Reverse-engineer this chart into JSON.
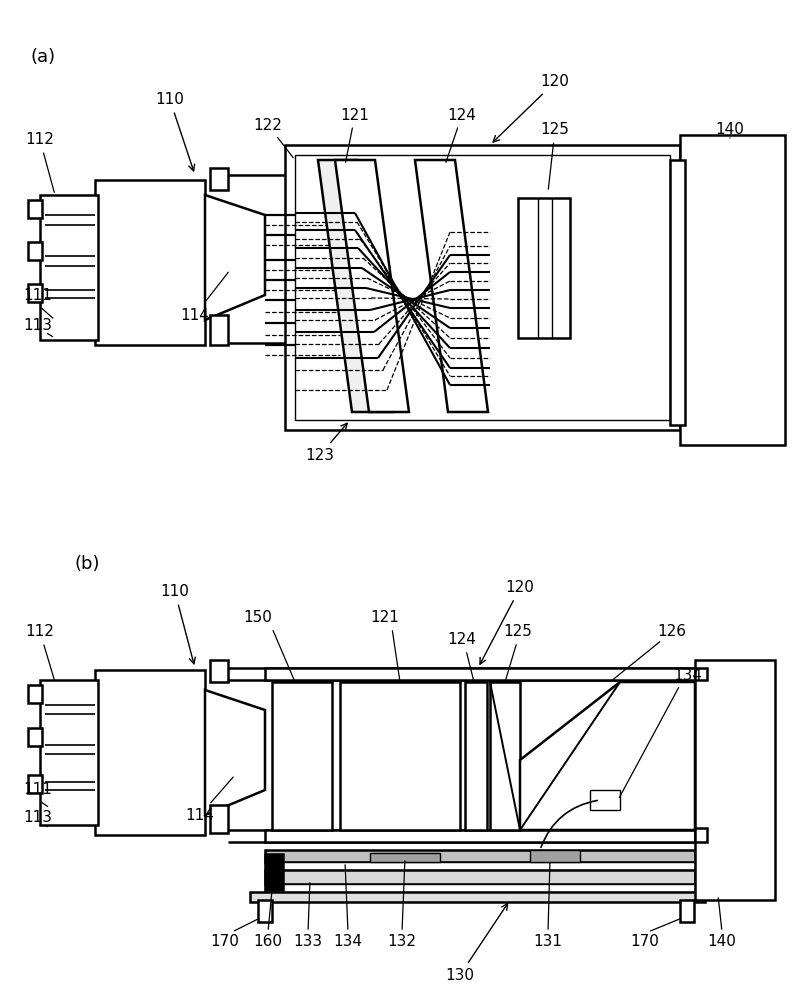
{
  "bg_color": "#ffffff",
  "lw_main": 1.8,
  "lw_thin": 1.0,
  "lw_beam_solid": 1.4,
  "lw_beam_dash": 0.9,
  "fontsize_label": 11,
  "fontsize_panel": 13
}
